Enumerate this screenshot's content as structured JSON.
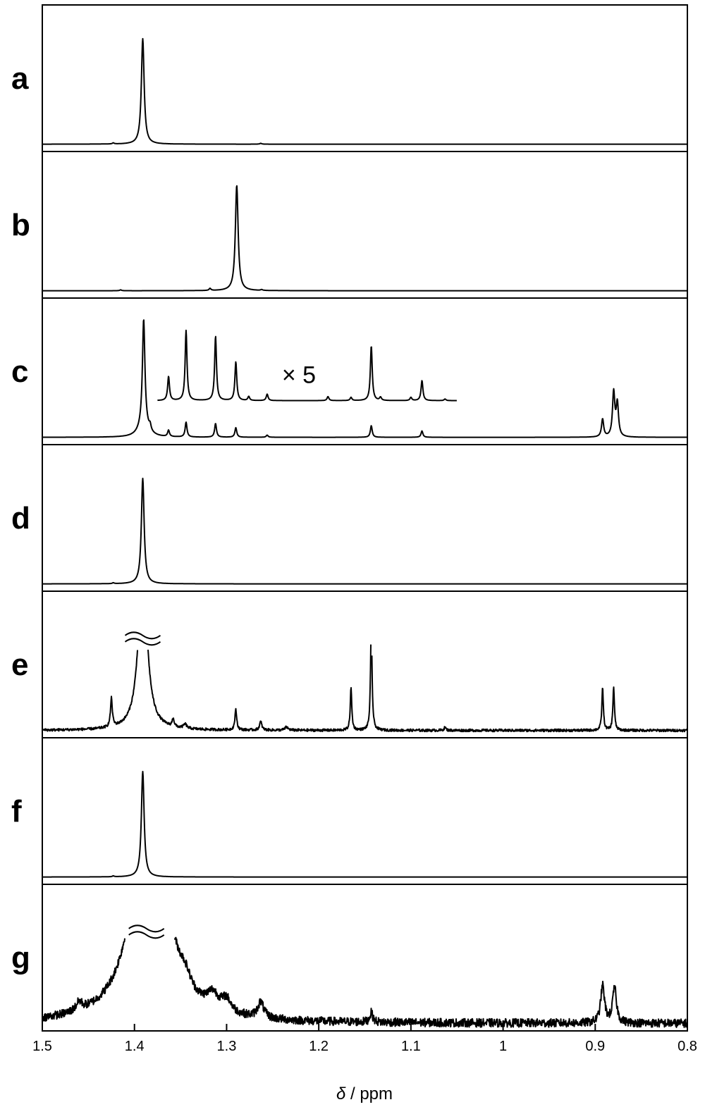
{
  "chart_data": {
    "type": "line",
    "xlabel": "δ / ppm",
    "xlabel_italic_part": "δ",
    "xlabel_rest": " / ppm",
    "xlim": [
      1.5,
      0.8
    ],
    "x_reversed": true,
    "xticks": [
      1.5,
      1.4,
      1.3,
      1.2,
      1.1,
      1,
      0.9,
      0.8
    ],
    "xtick_labels": [
      "1.5",
      "1.4",
      "1.3",
      "1.2",
      "1.1",
      "1",
      "0.9",
      "0.8"
    ],
    "panels": [
      {
        "label": "a",
        "peaks": [
          {
            "x": 1.391,
            "h": 1.0,
            "w": 0.0018
          },
          {
            "x": 1.423,
            "h": 0.01,
            "w": 0.0012
          },
          {
            "x": 1.263,
            "h": 0.008,
            "w": 0.0012
          }
        ],
        "noise": 0.0
      },
      {
        "label": "b",
        "peaks": [
          {
            "x": 1.289,
            "h": 1.0,
            "w": 0.0018
          },
          {
            "x": 1.318,
            "h": 0.02,
            "w": 0.0012
          },
          {
            "x": 1.415,
            "h": 0.008,
            "w": 0.0012
          },
          {
            "x": 1.262,
            "h": 0.008,
            "w": 0.0012
          }
        ],
        "noise": 0.0
      },
      {
        "label": "c",
        "peaks": [
          {
            "x": 1.39,
            "h": 1.0,
            "w": 0.0016
          },
          {
            "x": 1.39,
            "h": 0.12,
            "w": 0.006
          },
          {
            "x": 1.383,
            "h": 0.05,
            "w": 0.0012
          },
          {
            "x": 1.363,
            "h": 0.06,
            "w": 0.0012
          },
          {
            "x": 1.344,
            "h": 0.14,
            "w": 0.0012
          },
          {
            "x": 1.312,
            "h": 0.13,
            "w": 0.0012
          },
          {
            "x": 1.29,
            "h": 0.09,
            "w": 0.0012
          },
          {
            "x": 1.256,
            "h": 0.02,
            "w": 0.0012
          },
          {
            "x": 1.143,
            "h": 0.11,
            "w": 0.0012
          },
          {
            "x": 1.088,
            "h": 0.06,
            "w": 0.0012
          },
          {
            "x": 0.892,
            "h": 0.17,
            "w": 0.0014
          },
          {
            "x": 0.88,
            "h": 0.42,
            "w": 0.0015
          },
          {
            "x": 0.876,
            "h": 0.31,
            "w": 0.0015
          }
        ],
        "noise": 0.0,
        "inset": {
          "label": "× 5",
          "x_range": [
            1.375,
            1.05
          ],
          "scale": 5,
          "peaks": [
            {
              "x": 1.363,
              "h": 0.3,
              "w": 0.0012
            },
            {
              "x": 1.344,
              "h": 0.87,
              "w": 0.0012
            },
            {
              "x": 1.312,
              "h": 0.8,
              "w": 0.0012
            },
            {
              "x": 1.29,
              "h": 0.48,
              "w": 0.0012
            },
            {
              "x": 1.276,
              "h": 0.05,
              "w": 0.0012
            },
            {
              "x": 1.256,
              "h": 0.08,
              "w": 0.0012
            },
            {
              "x": 1.19,
              "h": 0.05,
              "w": 0.0012
            },
            {
              "x": 1.165,
              "h": 0.04,
              "w": 0.0012
            },
            {
              "x": 1.143,
              "h": 0.68,
              "w": 0.0012
            },
            {
              "x": 1.133,
              "h": 0.04,
              "w": 0.0012
            },
            {
              "x": 1.1,
              "h": 0.04,
              "w": 0.0012
            },
            {
              "x": 1.088,
              "h": 0.25,
              "w": 0.0012
            },
            {
              "x": 1.063,
              "h": 0.02,
              "w": 0.0012
            }
          ]
        }
      },
      {
        "label": "d",
        "peaks": [
          {
            "x": 1.391,
            "h": 1.0,
            "w": 0.0018
          },
          {
            "x": 1.423,
            "h": 0.008,
            "w": 0.0012
          }
        ],
        "noise": 0.0
      },
      {
        "label": "e",
        "truncated": true,
        "peaks": [
          {
            "x": 1.391,
            "h": 1.6,
            "w": 0.0055
          },
          {
            "x": 1.425,
            "h": 0.27,
            "w": 0.0012
          },
          {
            "x": 1.358,
            "h": 0.08,
            "w": 0.0012
          },
          {
            "x": 1.345,
            "h": 0.04,
            "w": 0.002
          },
          {
            "x": 1.29,
            "h": 0.19,
            "w": 0.0012
          },
          {
            "x": 1.263,
            "h": 0.08,
            "w": 0.0015
          },
          {
            "x": 1.235,
            "h": 0.03,
            "w": 0.002
          },
          {
            "x": 1.165,
            "h": 0.4,
            "w": 0.001
          },
          {
            "x": 1.143,
            "h": 1.0,
            "w": 0.001
          },
          {
            "x": 1.063,
            "h": 0.03,
            "w": 0.0012
          },
          {
            "x": 0.892,
            "h": 0.4,
            "w": 0.001
          },
          {
            "x": 0.88,
            "h": 0.41,
            "w": 0.001
          }
        ],
        "noise": 0.012
      },
      {
        "label": "f",
        "peaks": [
          {
            "x": 1.391,
            "h": 1.0,
            "w": 0.0018
          },
          {
            "x": 1.423,
            "h": 0.008,
            "w": 0.0012
          }
        ],
        "noise": 0.0
      },
      {
        "label": "g",
        "truncated": true,
        "peaks": [
          {
            "x": 1.387,
            "h": 1.9,
            "w": 0.02
          },
          {
            "x": 1.36,
            "h": 0.22,
            "w": 0.012
          },
          {
            "x": 1.345,
            "h": 0.14,
            "w": 0.008
          },
          {
            "x": 1.315,
            "h": 0.15,
            "w": 0.008
          },
          {
            "x": 1.3,
            "h": 0.12,
            "w": 0.006
          },
          {
            "x": 1.263,
            "h": 0.15,
            "w": 0.004
          },
          {
            "x": 1.46,
            "h": 0.08,
            "w": 0.004
          },
          {
            "x": 1.143,
            "h": 0.09,
            "w": 0.002
          },
          {
            "x": 0.892,
            "h": 0.35,
            "w": 0.0025
          },
          {
            "x": 0.879,
            "h": 0.33,
            "w": 0.0025
          }
        ],
        "noise": 0.04
      }
    ]
  }
}
